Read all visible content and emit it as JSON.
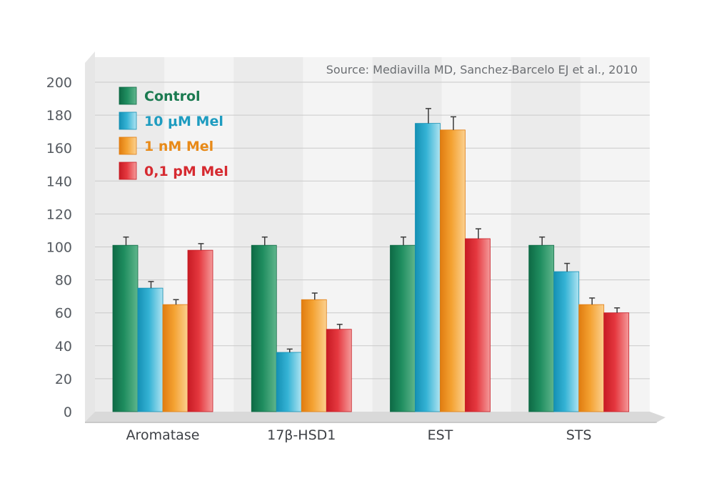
{
  "chart_data": {
    "type": "bar",
    "source": "Source: Mediavilla MD, Sanchez-Barcelo EJ et al., 2010",
    "categories": [
      "Aromatase",
      "17β-HSD1",
      "EST",
      "STS"
    ],
    "series": [
      {
        "name": "Control",
        "values": [
          101,
          101,
          101,
          101
        ],
        "errors": [
          5,
          5,
          5,
          5
        ]
      },
      {
        "name": "10 μM Mel",
        "values": [
          75,
          36,
          175,
          85
        ],
        "errors": [
          4,
          2,
          9,
          5
        ]
      },
      {
        "name": "1 nM Mel",
        "values": [
          65,
          68,
          171,
          65
        ],
        "errors": [
          3,
          4,
          8,
          4
        ]
      },
      {
        "name": "0,1 pM Mel",
        "values": [
          98,
          50,
          105,
          60
        ],
        "errors": [
          4,
          3,
          6,
          3
        ]
      }
    ],
    "yticks": [
      0,
      20,
      40,
      60,
      80,
      100,
      120,
      140,
      160,
      180,
      200
    ],
    "ylim": [
      0,
      200
    ],
    "grid": true,
    "legend": "top-left"
  },
  "colors": {
    "series": [
      {
        "dark": "#0e6a45",
        "mid": "#1f8d5f",
        "light": "#5fb58c",
        "label": "#1a7a50"
      },
      {
        "dark": "#1490b4",
        "mid": "#35b3d5",
        "light": "#aee3f1",
        "label": "#1e9cc0"
      },
      {
        "dark": "#e07c10",
        "mid": "#f4a232",
        "light": "#fbd08f",
        "label": "#e88a18"
      },
      {
        "dark": "#c71b24",
        "mid": "#e5383f",
        "light": "#f49a9a",
        "label": "#d62a30"
      }
    ]
  }
}
